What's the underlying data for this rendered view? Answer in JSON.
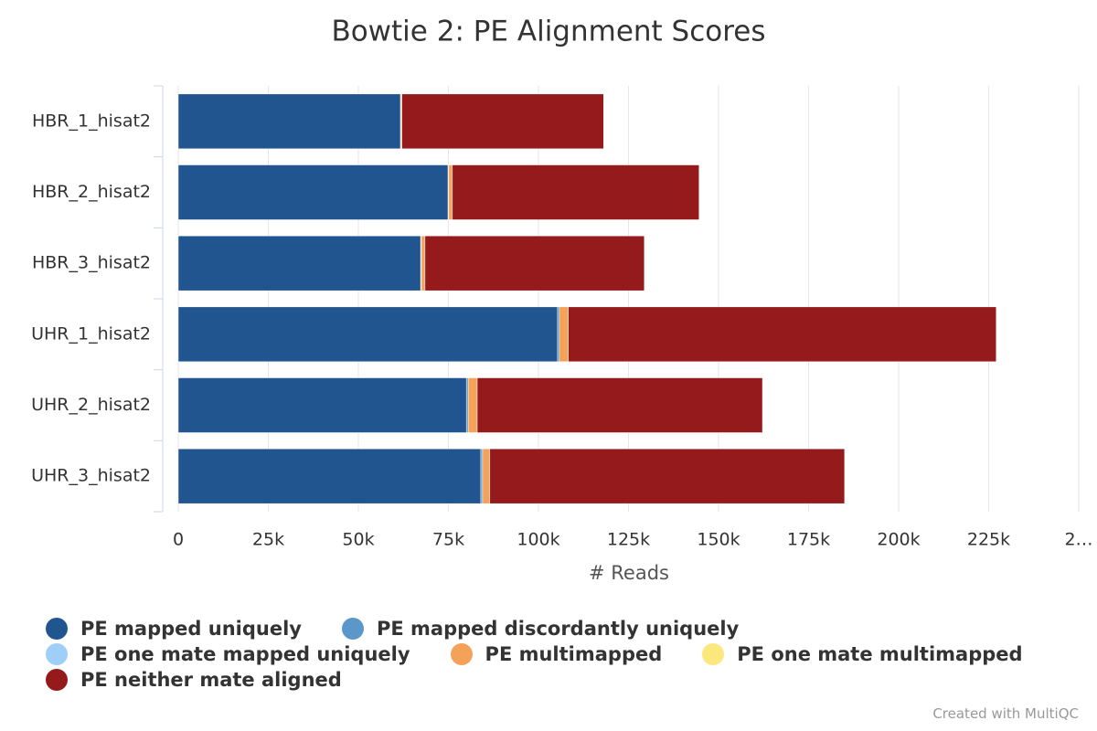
{
  "chart_data": {
    "type": "bar",
    "orientation": "horizontal",
    "stacked": true,
    "title": "Bowtie 2: PE Alignment Scores",
    "x_label": "# Reads",
    "credits": "Created with MultiQC",
    "categories": [
      "HBR_1_hisat2",
      "HBR_2_hisat2",
      "HBR_3_hisat2",
      "UHR_1_hisat2",
      "UHR_2_hisat2",
      "UHR_3_hisat2"
    ],
    "series": [
      {
        "name": "PE mapped uniquely",
        "color": "#215590",
        "values": [
          61700,
          74900,
          67300,
          105300,
          80000,
          84000
        ]
      },
      {
        "name": "PE mapped discordantly uniquely",
        "color": "#5b97c9",
        "values": [
          100,
          200,
          200,
          500,
          500,
          500
        ]
      },
      {
        "name": "PE one mate mapped uniquely",
        "color": "#9ecff8",
        "values": [
          0,
          0,
          0,
          0,
          0,
          0
        ]
      },
      {
        "name": "PE multimapped",
        "color": "#f4a15a",
        "values": [
          300,
          1000,
          1000,
          2500,
          2500,
          2000
        ]
      },
      {
        "name": "PE one mate multimapped",
        "color": "#fbe87c",
        "values": [
          0,
          0,
          0,
          0,
          0,
          0
        ]
      },
      {
        "name": "PE neither mate aligned",
        "color": "#941a1c",
        "values": [
          56000,
          68500,
          60900,
          118800,
          79200,
          98500
        ]
      }
    ],
    "xlim": [
      0,
      250000
    ],
    "xticks": [
      0,
      {
        "value": 25000,
        "label": "25k"
      },
      {
        "value": 50000,
        "label": "50k"
      },
      {
        "value": 75000,
        "label": "75k"
      },
      {
        "value": 100000,
        "label": "100k"
      },
      {
        "value": 125000,
        "label": "125k"
      },
      {
        "value": 150000,
        "label": "150k"
      },
      {
        "value": 175000,
        "label": "175k"
      },
      {
        "value": 200000,
        "label": "200k"
      },
      {
        "value": 225000,
        "label": "225k"
      },
      {
        "value": 250000,
        "label": "2…"
      }
    ],
    "grid": true
  }
}
